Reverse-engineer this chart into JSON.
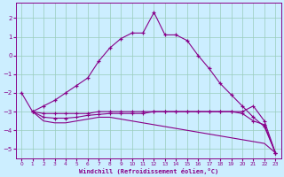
{
  "xlabel": "Windchill (Refroidissement éolien,°C)",
  "background_color": "#cceeff",
  "line_color": "#880088",
  "grid_color": "#99ccbb",
  "ylim": [
    -5.5,
    2.8
  ],
  "xlim": [
    -0.5,
    23.5
  ],
  "yticks": [
    -5,
    -4,
    -3,
    -2,
    -1,
    0,
    1,
    2
  ],
  "xticks": [
    0,
    1,
    2,
    3,
    4,
    5,
    6,
    7,
    8,
    9,
    10,
    11,
    12,
    13,
    14,
    15,
    16,
    17,
    18,
    19,
    20,
    21,
    22,
    23
  ],
  "curve1_x": [
    0,
    1,
    2,
    3,
    4,
    5,
    6,
    7,
    8,
    9,
    10,
    11,
    12,
    13,
    14,
    15,
    16,
    17,
    18,
    19,
    20,
    21,
    22,
    23
  ],
  "curve1_y": [
    -2.0,
    -3.0,
    -2.7,
    -2.4,
    -2.0,
    -1.6,
    -1.2,
    -0.3,
    0.4,
    0.9,
    1.2,
    1.2,
    2.3,
    1.1,
    1.1,
    0.8,
    0.0,
    -0.7,
    -1.5,
    -2.1,
    -2.7,
    -3.3,
    -3.8,
    -5.2
  ],
  "curve2_x": [
    1,
    2,
    3,
    4,
    5,
    6,
    7,
    8,
    9,
    10,
    11,
    12,
    13,
    14,
    15,
    16,
    17,
    18,
    19,
    20,
    21,
    22,
    23
  ],
  "curve2_y": [
    -3.0,
    -3.1,
    -3.1,
    -3.1,
    -3.1,
    -3.1,
    -3.0,
    -3.0,
    -3.0,
    -3.0,
    -3.0,
    -3.0,
    -3.0,
    -3.0,
    -3.0,
    -3.0,
    -3.0,
    -3.0,
    -3.0,
    -3.0,
    -2.7,
    -3.5,
    -5.2
  ],
  "curve3_x": [
    1,
    2,
    3,
    4,
    5,
    6,
    7,
    8,
    9,
    10,
    11,
    12,
    13,
    14,
    15,
    16,
    17,
    18,
    19,
    20,
    21,
    22,
    23
  ],
  "curve3_y": [
    -3.0,
    -3.3,
    -3.35,
    -3.35,
    -3.3,
    -3.2,
    -3.15,
    -3.1,
    -3.1,
    -3.1,
    -3.1,
    -3.0,
    -3.0,
    -3.0,
    -3.0,
    -3.0,
    -3.0,
    -3.0,
    -3.0,
    -3.1,
    -3.5,
    -3.7,
    -5.2
  ],
  "curve4_x": [
    1,
    2,
    3,
    4,
    5,
    6,
    7,
    8,
    9,
    10,
    11,
    12,
    13,
    14,
    15,
    16,
    17,
    18,
    19,
    20,
    21,
    22,
    23
  ],
  "curve4_y": [
    -3.0,
    -3.5,
    -3.6,
    -3.6,
    -3.5,
    -3.4,
    -3.3,
    -3.3,
    -3.4,
    -3.5,
    -3.6,
    -3.7,
    -3.8,
    -3.9,
    -4.0,
    -4.1,
    -4.2,
    -4.3,
    -4.4,
    -4.5,
    -4.6,
    -4.7,
    -5.2
  ]
}
